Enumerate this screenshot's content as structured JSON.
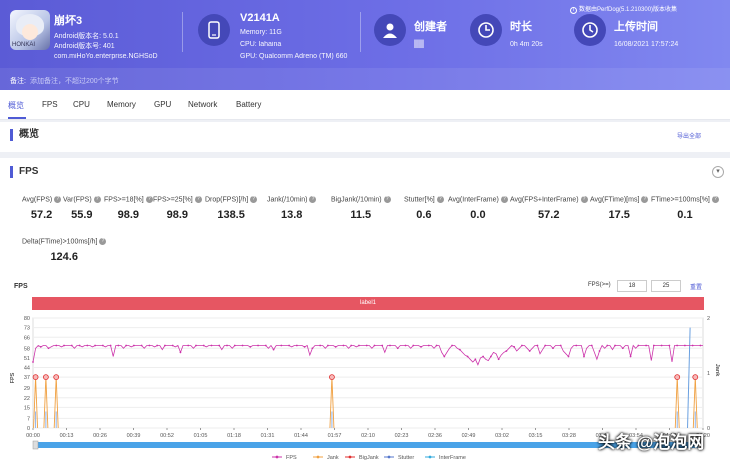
{
  "header": {
    "app": {
      "name": "崩坏3",
      "android_version": "Android版本名: 5.0.1",
      "android_code": "Android版本号: 401",
      "package": "com.miHoYo.enterprise.NGHSoD",
      "icon_tag": "HONKAI"
    },
    "device": {
      "name": "V2141A",
      "memory": "Memory: 11G",
      "cpu": "CPU: lahaina",
      "gpu": "GPU: Qualcomm Adreno (TM) 660"
    },
    "creator": {
      "label": "创建者",
      "value": "██"
    },
    "duration": {
      "label": "时长",
      "value": "0h 4m 20s"
    },
    "upload": {
      "label": "上传时间",
      "value": "16/08/2021 17:57:24"
    },
    "source_note": "数据由PerfDog(5.1.210300)版本收集",
    "note_label": "备注:",
    "note_placeholder": "添加备注，不超过200个字节"
  },
  "tabs": [
    "概览",
    "FPS",
    "CPU",
    "Memory",
    "GPU",
    "Network",
    "Battery"
  ],
  "overview": {
    "title": "概览",
    "export": "导出全部"
  },
  "fps": {
    "title": "FPS",
    "stats": [
      {
        "label": "Avg(FPS)",
        "value": "57.2"
      },
      {
        "label": "Var(FPS)",
        "value": "55.9"
      },
      {
        "label": "FPS>=18[%]",
        "value": "98.9"
      },
      {
        "label": "FPS>=25[%]",
        "value": "98.9"
      },
      {
        "label": "Drop(FPS)[/h]",
        "value": "138.5"
      },
      {
        "label": "Jank(/10min)",
        "value": "13.8"
      },
      {
        "label": "BigJank(/10min)",
        "value": "11.5"
      },
      {
        "label": "Stutter[%]",
        "value": "0.6"
      },
      {
        "label": "Avg(InterFrame)",
        "value": "0.0"
      },
      {
        "label": "Avg(FPS+InterFrame)",
        "value": "57.2"
      },
      {
        "label": "Avg(FTime)[ms]",
        "value": "17.5"
      },
      {
        "label": "FTime>=100ms[%]",
        "value": "0.1"
      },
      {
        "label": "Delta(FTime)>100ms[/h]",
        "value": "124.6"
      }
    ]
  },
  "chart_panel": {
    "title": "FPS",
    "threshold_label": "FPS(>=)",
    "threshold_1": "18",
    "threshold_2": "25",
    "reset": "重置",
    "band_label": "label1"
  },
  "chart_data": {
    "type": "line",
    "ylabel": "FPS",
    "y2label": "Jank",
    "ylim": [
      0,
      80
    ],
    "y2lim": [
      0,
      2
    ],
    "yticks": [
      0,
      7,
      15,
      22,
      29,
      37,
      44,
      51,
      58,
      66,
      73,
      80
    ],
    "y2ticks": [
      0,
      1,
      2
    ],
    "xticks": [
      "00:00",
      "00:13",
      "00:26",
      "00:39",
      "00:52",
      "01:05",
      "01:18",
      "01:31",
      "01:44",
      "01:57",
      "02:10",
      "02:23",
      "02:36",
      "02:49",
      "03:02",
      "03:15",
      "03:28",
      "03:41",
      "03:54",
      "04:07",
      "04:20"
    ],
    "x_max_seconds": 260,
    "series": [
      {
        "name": "FPS",
        "color": "#cc33aa",
        "values": [
          48,
          58,
          60,
          59,
          60,
          60,
          58,
          59,
          60,
          60,
          60,
          59,
          60,
          60,
          60,
          60,
          58,
          60,
          60,
          59,
          60,
          60,
          60,
          59,
          60,
          60,
          60,
          60,
          59,
          60,
          60,
          52,
          60,
          60,
          60,
          58,
          60,
          60,
          59,
          60,
          60,
          60,
          60,
          58,
          60,
          60,
          60,
          59,
          60,
          60,
          57,
          60,
          60,
          60,
          60,
          59,
          60,
          55,
          60,
          60,
          60,
          60,
          58,
          60,
          60,
          60,
          60,
          59,
          60,
          60,
          60,
          60,
          60,
          57,
          60,
          60,
          60,
          58,
          60,
          60,
          60,
          60,
          60,
          60,
          59,
          60,
          60,
          60,
          60,
          60,
          60,
          58,
          60,
          57,
          60,
          60,
          60,
          60,
          60,
          60,
          59,
          60,
          60,
          60,
          60,
          59,
          60,
          53,
          58,
          60,
          60,
          60,
          60,
          58,
          60,
          60,
          60,
          59,
          60,
          60,
          60,
          60,
          58,
          60,
          60,
          59,
          60,
          60,
          60,
          60,
          60,
          58,
          60,
          60,
          60,
          60,
          55,
          60,
          60,
          60,
          60,
          58,
          60,
          60,
          60,
          60,
          58,
          60,
          60,
          60,
          59,
          60,
          60,
          60,
          60,
          58,
          60,
          60,
          55,
          52,
          55,
          58,
          60,
          60,
          58,
          57,
          55,
          53,
          52,
          50,
          48,
          50,
          46,
          51,
          52,
          50,
          49,
          52,
          55,
          54,
          50,
          53,
          55,
          56,
          58,
          60,
          59,
          56,
          58,
          60,
          60,
          58,
          56,
          58,
          60,
          60,
          54,
          57,
          60,
          60,
          60,
          58,
          60,
          60,
          60,
          56,
          54,
          52,
          58,
          60,
          60,
          60,
          60,
          52,
          58,
          60,
          60,
          55,
          50,
          56,
          60,
          58,
          60,
          60,
          57,
          60,
          60,
          60,
          58,
          60,
          60,
          52,
          60,
          58,
          60,
          60,
          60,
          60,
          60,
          49,
          60,
          60,
          60,
          60,
          60,
          60,
          60,
          48,
          60,
          60,
          60,
          60,
          60,
          60,
          60,
          60,
          60,
          60,
          60,
          60
        ]
      },
      {
        "name": "Jank",
        "color": "#f0a040",
        "values": []
      },
      {
        "name": "BigJank",
        "color": "#e03030",
        "values": []
      },
      {
        "name": "Stutter",
        "color": "#5577cc",
        "values": []
      },
      {
        "name": "InterFrame",
        "color": "#33aadd",
        "values": []
      }
    ],
    "events": [
      {
        "t": 1,
        "type": "BigJank"
      },
      {
        "t": 5,
        "type": "BigJank"
      },
      {
        "t": 9,
        "type": "BigJank"
      },
      {
        "t": 116,
        "type": "BigJank"
      },
      {
        "t": 250,
        "type": "BigJank"
      },
      {
        "t": 257,
        "type": "BigJank"
      }
    ],
    "legend": [
      "FPS",
      "Jank",
      "BigJank",
      "Stutter",
      "InterFrame"
    ],
    "legend_position": "bottom"
  }
}
